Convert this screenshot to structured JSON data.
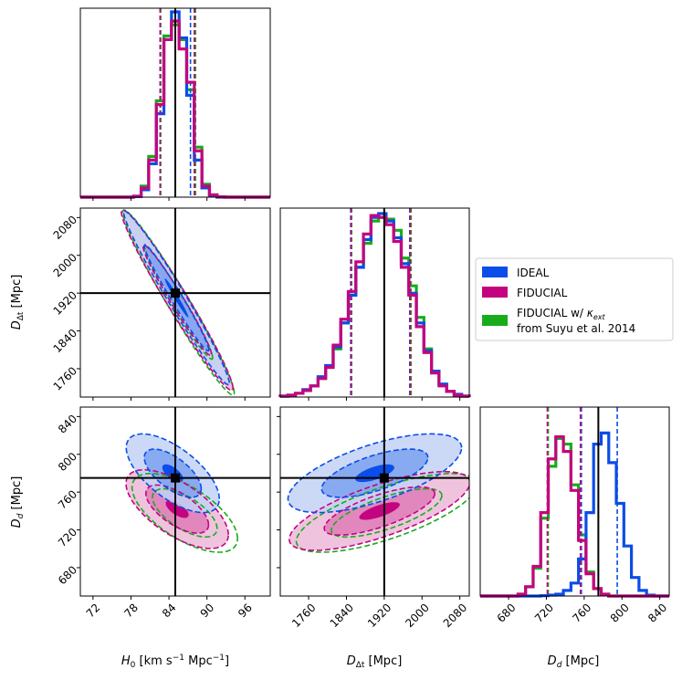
{
  "chart_data": {
    "type": "corner",
    "parameters": [
      {
        "key": "H0",
        "label": "H₀ [km s⁻¹ Mpc⁻¹]",
        "short": "H₀",
        "range": [
          70,
          100
        ],
        "ticks": [
          "72",
          "78",
          "84",
          "90",
          "96"
        ],
        "tick_values": [
          72,
          78,
          84,
          90,
          96
        ],
        "truth": 85
      },
      {
        "key": "Ddt",
        "label": "DΔt [Mpc]",
        "short": "DΔt",
        "range": [
          1700,
          2100
        ],
        "ticks": [
          "1760",
          "1840",
          "1920",
          "2000",
          "2080"
        ],
        "tick_values": [
          1760,
          1840,
          1920,
          2000,
          2080
        ],
        "truth": 1920
      },
      {
        "key": "Dd",
        "label": "Dd [Mpc]",
        "short": "Dd",
        "range": [
          650,
          850
        ],
        "ticks": [
          "680",
          "720",
          "760",
          "800",
          "840"
        ],
        "tick_values": [
          680,
          720,
          760,
          800,
          840
        ],
        "truth": 775
      }
    ],
    "series": [
      {
        "name": "IDEAL",
        "color": "#0a4de8",
        "means": {
          "H0": 85,
          "Ddt": 1920,
          "Dd": 775
        },
        "intervals": {
          "H0": [
            82.6,
            87.4
          ],
          "Ddt": [
            1849,
            1974
          ],
          "Dd": [
            757,
            795
          ]
        }
      },
      {
        "name": "FIDUCIAL",
        "color": "#c4047f",
        "means": {
          "H0": 85,
          "Ddt": 1918,
          "Dd": 738
        },
        "intervals": {
          "H0": [
            82.6,
            88.0
          ],
          "Ddt": [
            1850,
            1975
          ],
          "Dd": [
            721,
            756
          ]
        }
      },
      {
        "name": "FIDUCIAL w/ κext\n from Suyu et al. 2014",
        "color": "#18ac1b",
        "means": {
          "H0": 85.5,
          "Ddt": 1922,
          "Dd": 738
        },
        "intervals": {
          "H0": [
            82.7,
            88.2
          ],
          "Ddt": [
            1851,
            1977
          ],
          "Dd": [
            722,
            757
          ]
        }
      }
    ],
    "histograms": {
      "H0": {
        "x": [
          70.0,
          71.2,
          72.4,
          73.6,
          74.8,
          76.0,
          77.2,
          78.4,
          79.6,
          80.8,
          82.0,
          83.2,
          84.4,
          85.6,
          86.8,
          88.0,
          89.2,
          90.4,
          91.6,
          92.8,
          94.0,
          95.2,
          96.4,
          97.6,
          98.8,
          100.0
        ],
        "IDEAL": [
          0,
          0,
          0,
          0,
          0,
          0,
          0,
          0.003,
          0.04,
          0.18,
          0.45,
          0.85,
          1.0,
          0.86,
          0.55,
          0.2,
          0.05,
          0.008,
          0,
          0,
          0,
          0,
          0,
          0,
          0
        ],
        "FIDUCIAL": [
          0,
          0,
          0,
          0,
          0,
          0,
          0,
          0.005,
          0.05,
          0.2,
          0.5,
          0.85,
          0.95,
          0.8,
          0.62,
          0.25,
          0.06,
          0.012,
          0.002,
          0,
          0,
          0,
          0,
          0,
          0
        ],
        "FIDUCIAL w/ κext": [
          0,
          0,
          0,
          0,
          0,
          0,
          0,
          0.005,
          0.06,
          0.22,
          0.52,
          0.87,
          0.93,
          0.85,
          0.58,
          0.27,
          0.07,
          0.013,
          0.002,
          0,
          0,
          0,
          0,
          0,
          0
        ]
      },
      "Ddt": {
        "x": [
          1700,
          1716,
          1732,
          1748,
          1764,
          1780,
          1796,
          1812,
          1828,
          1844,
          1860,
          1876,
          1892,
          1908,
          1924,
          1940,
          1956,
          1972,
          1988,
          2004,
          2020,
          2036,
          2052,
          2068,
          2084,
          2100
        ],
        "IDEAL": [
          0.005,
          0.01,
          0.02,
          0.04,
          0.06,
          0.11,
          0.17,
          0.27,
          0.4,
          0.55,
          0.7,
          0.85,
          0.97,
          0.99,
          0.95,
          0.86,
          0.72,
          0.56,
          0.4,
          0.25,
          0.14,
          0.07,
          0.03,
          0.015,
          0.005
        ],
        "FIDUCIAL": [
          0.005,
          0.01,
          0.02,
          0.035,
          0.06,
          0.1,
          0.16,
          0.28,
          0.42,
          0.57,
          0.73,
          0.88,
          0.98,
          0.97,
          0.93,
          0.84,
          0.7,
          0.55,
          0.38,
          0.24,
          0.13,
          0.06,
          0.03,
          0.01,
          0.005
        ],
        "FIDUCIAL w/ κext": [
          0.005,
          0.01,
          0.02,
          0.035,
          0.06,
          0.1,
          0.16,
          0.26,
          0.4,
          0.55,
          0.7,
          0.83,
          0.95,
          0.97,
          0.96,
          0.9,
          0.75,
          0.6,
          0.43,
          0.26,
          0.14,
          0.07,
          0.03,
          0.01,
          0.005
        ]
      },
      "Dd": {
        "x": [
          650,
          658,
          666,
          674,
          682,
          690,
          698,
          706,
          714,
          722,
          730,
          738,
          746,
          754,
          762,
          770,
          778,
          786,
          794,
          802,
          810,
          818,
          826,
          834,
          842,
          850
        ],
        "IDEAL": [
          0,
          0,
          0,
          0,
          0,
          0,
          0,
          0,
          0.002,
          0.005,
          0.01,
          0.03,
          0.07,
          0.2,
          0.45,
          0.82,
          0.88,
          0.72,
          0.5,
          0.27,
          0.1,
          0.03,
          0.005,
          0,
          0
        ],
        "FIDUCIAL": [
          0,
          0,
          0,
          0,
          0,
          0.01,
          0.05,
          0.16,
          0.45,
          0.74,
          0.86,
          0.78,
          0.57,
          0.3,
          0.12,
          0.04,
          0.01,
          0,
          0,
          0,
          0,
          0,
          0,
          0,
          0
        ],
        "FIDUCIAL w/ κext": [
          0,
          0,
          0,
          0,
          0,
          0.01,
          0.05,
          0.15,
          0.42,
          0.7,
          0.85,
          0.82,
          0.6,
          0.33,
          0.13,
          0.04,
          0.01,
          0,
          0,
          0,
          0,
          0,
          0,
          0,
          0
        ]
      }
    },
    "contours_2d": {
      "H0_Ddt": {
        "IDEAL": {
          "center": [
            85.2,
            1910
          ],
          "sigma_1d": [
            3.4,
            75
          ],
          "corr": -0.98
        },
        "FIDUCIAL": {
          "center": [
            85.3,
            1905
          ],
          "sigma_1d": [
            3.6,
            78
          ],
          "corr": -0.975
        },
        "FIDUCIAL w/ κext": {
          "center": [
            85.5,
            1900
          ],
          "sigma_1d": [
            3.6,
            80
          ],
          "corr": -0.975
        }
      },
      "H0_Dd": {
        "IDEAL": {
          "center": [
            84.6,
            780
          ],
          "sigma_1d": [
            3.0,
            17
          ],
          "corr": -0.65
        },
        "FIDUCIAL": {
          "center": [
            85.3,
            742
          ],
          "sigma_1d": [
            3.3,
            17
          ],
          "corr": -0.65
        },
        "FIDUCIAL w/ κext": {
          "center": [
            86.5,
            738
          ],
          "sigma_1d": [
            3.4,
            17
          ],
          "corr": -0.65
        }
      },
      "Ddt_Dd": {
        "IDEAL": {
          "center": [
            1900,
            780
          ],
          "sigma_1d": [
            75,
            17
          ],
          "corr": 0.65
        },
        "FIDUCIAL": {
          "center": [
            1910,
            740
          ],
          "sigma_1d": [
            78,
            17
          ],
          "corr": 0.72
        },
        "FIDUCIAL w/ κext": {
          "center": [
            1925,
            738
          ],
          "sigma_1d": [
            78,
            17
          ],
          "corr": 0.72
        }
      }
    },
    "legend_position": "right-middle",
    "grid": false
  }
}
